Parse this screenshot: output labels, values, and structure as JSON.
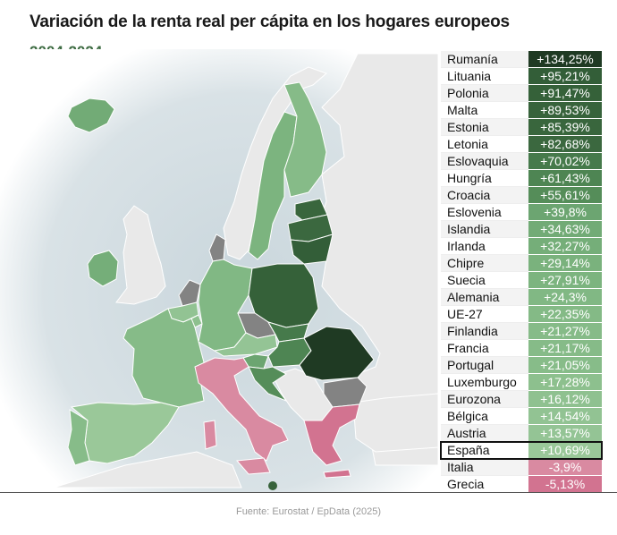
{
  "header": {
    "title": "Variación de la renta real per cápita en los hogares europeos",
    "subtitle": "2004-2024"
  },
  "colors": {
    "strongest": "#1f3a23",
    "strong": "#3a6a40",
    "medium": "#5f9a64",
    "light": "#8ec190",
    "lightest": "#b8dcb4",
    "negative": "#d27390",
    "no_data": "#838383",
    "non_eu": "#e9e9e9",
    "sea": "#d9e2e6"
  },
  "ranking": [
    {
      "country": "Rumanía",
      "value": "+134,25%",
      "color": "#1f3a23"
    },
    {
      "country": "Lituania",
      "value": "+95,21%",
      "color": "#335e38"
    },
    {
      "country": "Polonia",
      "value": "+91,47%",
      "color": "#356139"
    },
    {
      "country": "Malta",
      "value": "+89,53%",
      "color": "#37633b"
    },
    {
      "country": "Estonia",
      "value": "+85,39%",
      "color": "#39663d"
    },
    {
      "country": "Letonia",
      "value": "+82,68%",
      "color": "#3b683f"
    },
    {
      "country": "Eslovaquia",
      "value": "+70,02%",
      "color": "#467a4b"
    },
    {
      "country": "Hungría",
      "value": "+61,43%",
      "color": "#4e8553"
    },
    {
      "country": "Croacia",
      "value": "+55,61%",
      "color": "#558d59"
    },
    {
      "country": "Eslovenia",
      "value": "+39,8%",
      "color": "#6ca571"
    },
    {
      "country": "Islandia",
      "value": "+34,63%",
      "color": "#72ab76"
    },
    {
      "country": "Irlanda",
      "value": "+32,27%",
      "color": "#75ae79"
    },
    {
      "country": "Chipre",
      "value": "+29,14%",
      "color": "#7ab27d"
    },
    {
      "country": "Suecia",
      "value": "+27,91%",
      "color": "#7cb47f"
    },
    {
      "country": "Alemania",
      "value": "+24,3%",
      "color": "#81b884"
    },
    {
      "country": "UE-27",
      "value": "+22,35%",
      "color": "#84ba86"
    },
    {
      "country": "Finlandia",
      "value": "+21,27%",
      "color": "#86bb88"
    },
    {
      "country": "Francia",
      "value": "+21,17%",
      "color": "#86bb88"
    },
    {
      "country": "Portugal",
      "value": "+21,05%",
      "color": "#87bc89"
    },
    {
      "country": "Luxemburgo",
      "value": "+17,28%",
      "color": "#8dc08e"
    },
    {
      "country": "Eurozona",
      "value": "+16,12%",
      "color": "#8fc190"
    },
    {
      "country": "Bélgica",
      "value": "+14,54%",
      "color": "#92c393"
    },
    {
      "country": "Austria",
      "value": "+13,57%",
      "color": "#94c495"
    },
    {
      "country": "España",
      "value": "+10,69%",
      "color": "#9ac899",
      "highlight": true
    },
    {
      "country": "Italia",
      "value": "-3,9%",
      "color": "#d98aa1"
    },
    {
      "country": "Grecia",
      "value": "-5,13%",
      "color": "#d27390"
    }
  ],
  "footer": {
    "source": "Fuente: Eurostat / EpData (2025)"
  }
}
